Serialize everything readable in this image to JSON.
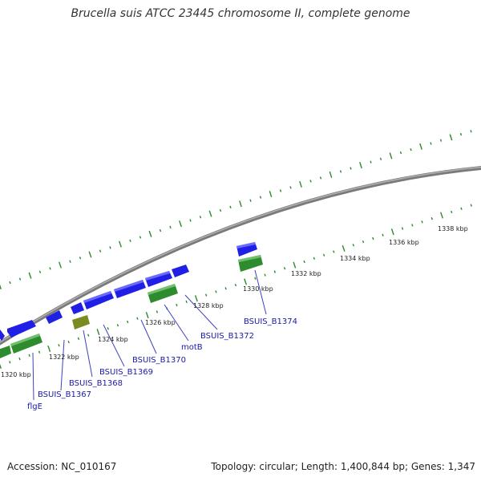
{
  "title": "Brucella suis ATCC 23445 chromosome II, complete genome",
  "footer": {
    "accession": "Accession: NC_010167",
    "summary": "Topology: circular; Length: 1,400,844 bp; Genes: 1,347"
  },
  "colors": {
    "backbone": "#8c8c8c",
    "forward_gene": "#1f1fe6",
    "reverse_gene": "#2e8b2e",
    "reverse_gene_alt": "#7a8b22",
    "tick": "#2a8a2a",
    "label_text": "#1a1aa6",
    "leader_line": "#4040c0"
  },
  "ticks": [
    {
      "kbp": 1320,
      "label": "1320 kbp"
    },
    {
      "kbp": 1322,
      "label": "1322 kbp"
    },
    {
      "kbp": 1324,
      "label": "1324 kbp"
    },
    {
      "kbp": 1326,
      "label": "1326 kbp"
    },
    {
      "kbp": 1328,
      "label": "1328 kbp"
    },
    {
      "kbp": 1330,
      "label": "1330 kbp"
    },
    {
      "kbp": 1332,
      "label": "1332 kbp"
    },
    {
      "kbp": 1334,
      "label": "1334 kbp"
    },
    {
      "kbp": 1336,
      "label": "1336 kbp"
    },
    {
      "kbp": 1338,
      "label": "1338 kbp"
    }
  ],
  "gene_labels": [
    "flgE",
    "BSUIS_B1367",
    "BSUIS_B1368",
    "BSUIS_B1369",
    "BSUIS_B1370",
    "motB",
    "BSUIS_B1372",
    "BSUIS_B1374"
  ]
}
